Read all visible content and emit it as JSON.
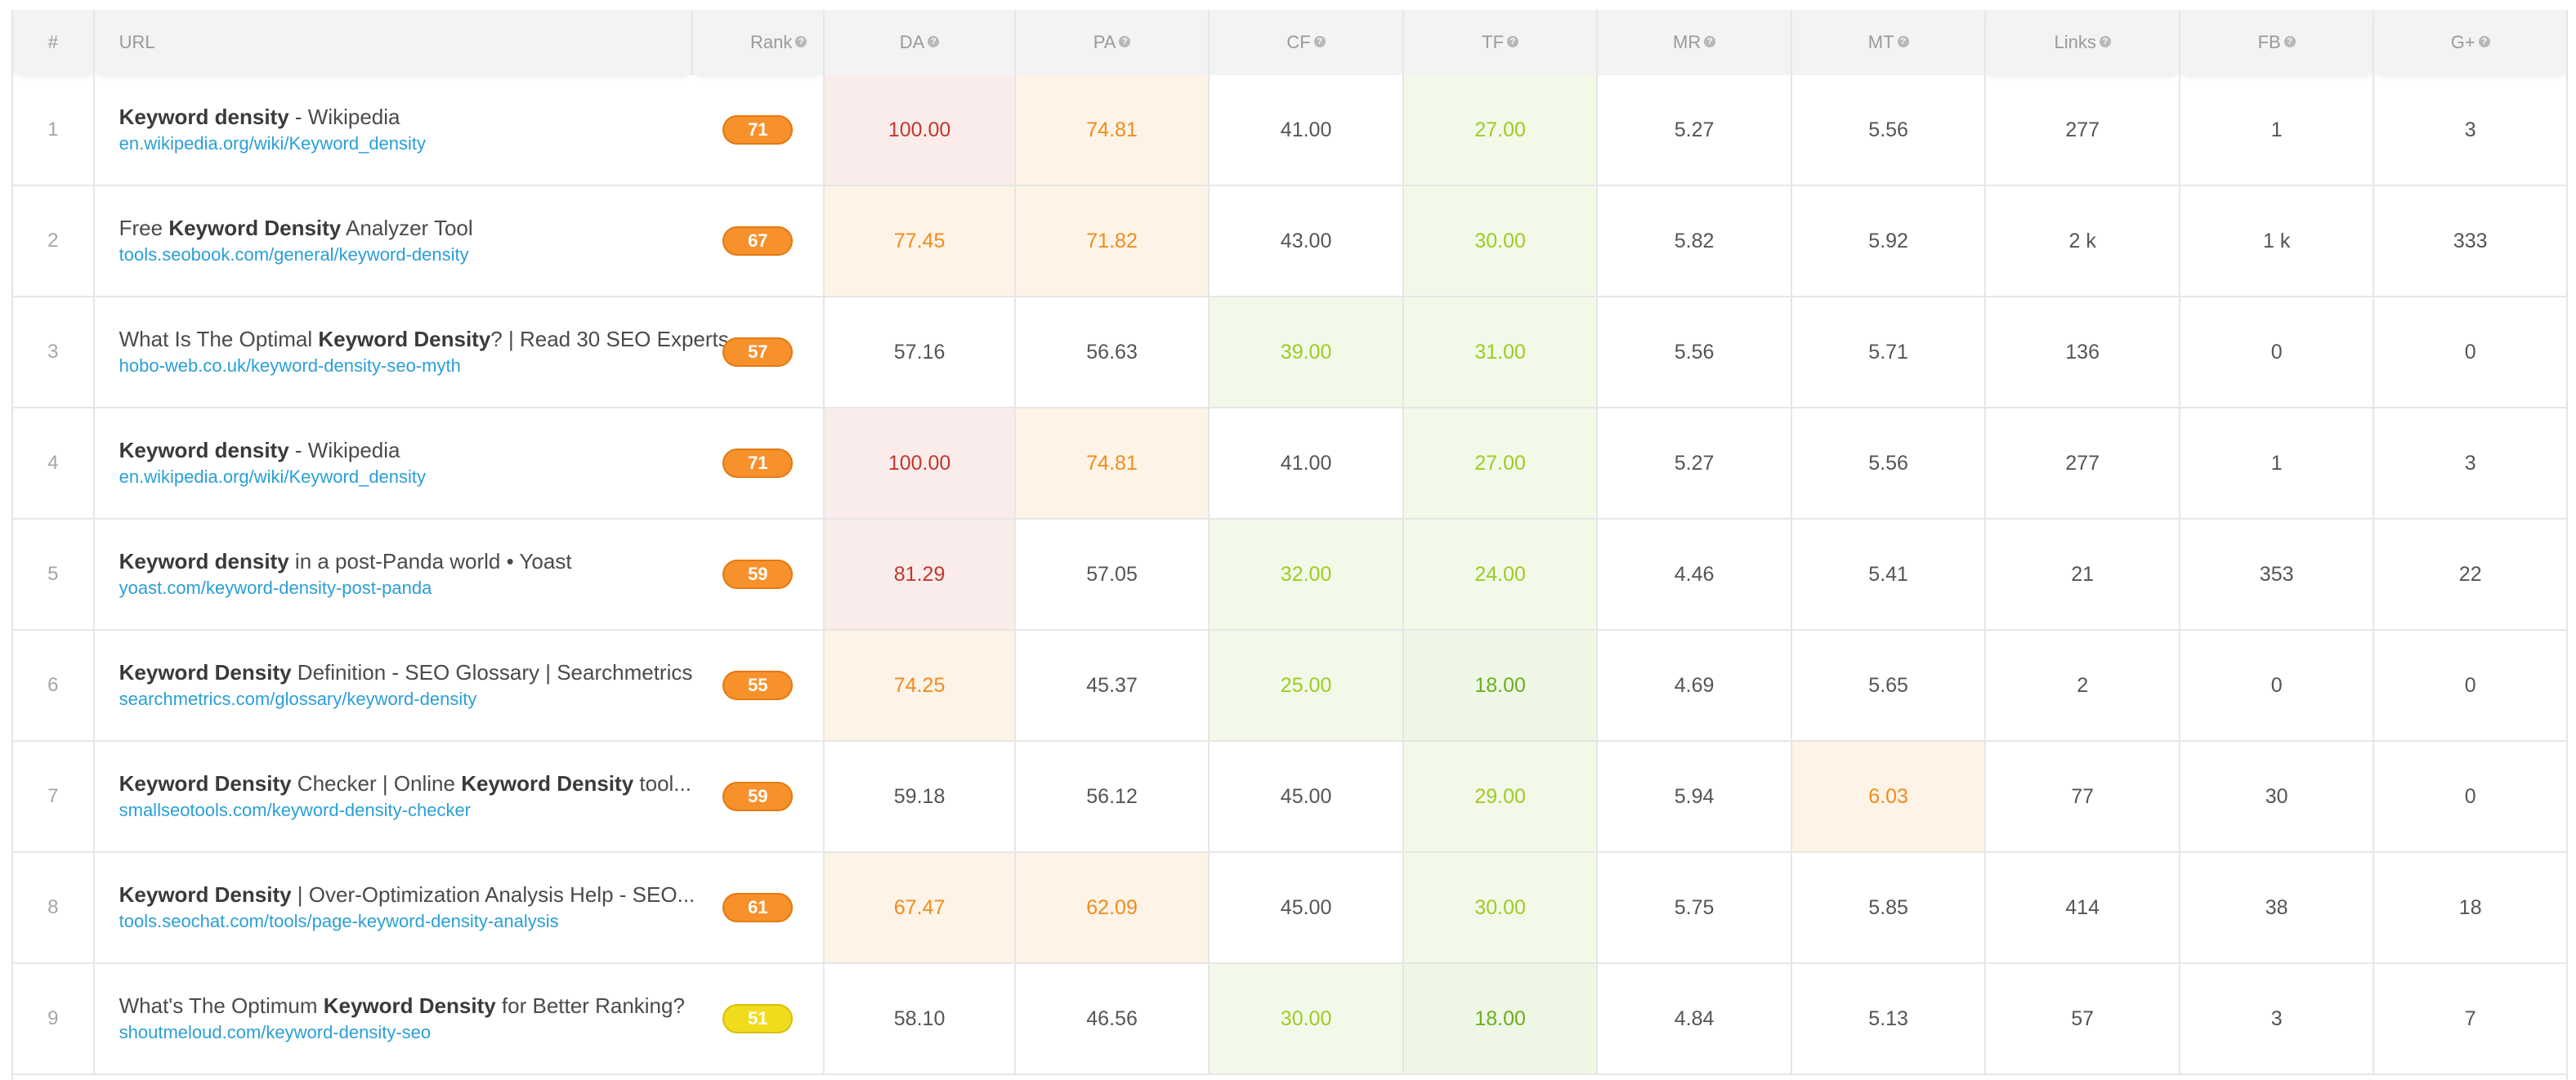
{
  "columns": {
    "num": "#",
    "url": "URL",
    "rank": "Rank",
    "da": "DA",
    "pa": "PA",
    "cf": "CF",
    "tf": "TF",
    "mr": "MR",
    "mt": "MT",
    "links": "Links",
    "fb": "FB",
    "gplus": "G+"
  },
  "colors": {
    "red": "#c0392b",
    "orange": "#ef8c1e",
    "light_green": "#9ccc22",
    "green": "#6dad1e",
    "rank_orange": "#f7912b",
    "rank_yellow": "#f0dc1c",
    "link_blue": "#2a9fd6"
  },
  "rows": [
    {
      "num": "1",
      "title": [
        [
          "b",
          "Keyword density"
        ],
        [
          "t",
          " - Wikipedia"
        ]
      ],
      "url": "en.wikipedia.org/wiki/Keyword_density",
      "rank": "71",
      "rank_color": "orange",
      "da": {
        "v": "100.00",
        "c": "red"
      },
      "pa": {
        "v": "74.81",
        "c": "orange"
      },
      "cf": {
        "v": "41.00",
        "c": "plain"
      },
      "tf": {
        "v": "27.00",
        "c": "lgreen"
      },
      "mr": {
        "v": "5.27",
        "c": "plain"
      },
      "mt": {
        "v": "5.56",
        "c": "plain"
      },
      "links": "277",
      "fb": "1",
      "gplus": "3"
    },
    {
      "num": "2",
      "title": [
        [
          "t",
          "Free "
        ],
        [
          "b",
          "Keyword Density"
        ],
        [
          "t",
          " Analyzer Tool"
        ]
      ],
      "url": "tools.seobook.com/general/keyword-density",
      "rank": "67",
      "rank_color": "orange",
      "da": {
        "v": "77.45",
        "c": "orange"
      },
      "pa": {
        "v": "71.82",
        "c": "orange"
      },
      "cf": {
        "v": "43.00",
        "c": "plain"
      },
      "tf": {
        "v": "30.00",
        "c": "lgreen"
      },
      "mr": {
        "v": "5.82",
        "c": "plain"
      },
      "mt": {
        "v": "5.92",
        "c": "plain"
      },
      "links": "2 k",
      "fb": "1 k",
      "gplus": "333"
    },
    {
      "num": "3",
      "title": [
        [
          "t",
          "What Is The Optimal "
        ],
        [
          "b",
          "Keyword Density"
        ],
        [
          "t",
          "? | Read 30 SEO Experts"
        ]
      ],
      "url": "hobo-web.co.uk/keyword-density-seo-myth",
      "rank": "57",
      "rank_color": "orange",
      "da": {
        "v": "57.16",
        "c": "plain"
      },
      "pa": {
        "v": "56.63",
        "c": "plain"
      },
      "cf": {
        "v": "39.00",
        "c": "lgreen"
      },
      "tf": {
        "v": "31.00",
        "c": "lgreen"
      },
      "mr": {
        "v": "5.56",
        "c": "plain"
      },
      "mt": {
        "v": "5.71",
        "c": "plain"
      },
      "links": "136",
      "fb": "0",
      "gplus": "0"
    },
    {
      "num": "4",
      "title": [
        [
          "b",
          "Keyword density"
        ],
        [
          "t",
          " - Wikipedia"
        ]
      ],
      "url": "en.wikipedia.org/wiki/Keyword_density",
      "rank": "71",
      "rank_color": "orange",
      "da": {
        "v": "100.00",
        "c": "red"
      },
      "pa": {
        "v": "74.81",
        "c": "orange"
      },
      "cf": {
        "v": "41.00",
        "c": "plain"
      },
      "tf": {
        "v": "27.00",
        "c": "lgreen"
      },
      "mr": {
        "v": "5.27",
        "c": "plain"
      },
      "mt": {
        "v": "5.56",
        "c": "plain"
      },
      "links": "277",
      "fb": "1",
      "gplus": "3"
    },
    {
      "num": "5",
      "title": [
        [
          "b",
          "Keyword density"
        ],
        [
          "t",
          " in a post-Panda world • Yoast"
        ]
      ],
      "url": "yoast.com/keyword-density-post-panda",
      "rank": "59",
      "rank_color": "orange",
      "da": {
        "v": "81.29",
        "c": "red"
      },
      "pa": {
        "v": "57.05",
        "c": "plain"
      },
      "cf": {
        "v": "32.00",
        "c": "lgreen"
      },
      "tf": {
        "v": "24.00",
        "c": "lgreen"
      },
      "mr": {
        "v": "4.46",
        "c": "plain"
      },
      "mt": {
        "v": "5.41",
        "c": "plain"
      },
      "links": "21",
      "fb": "353",
      "gplus": "22"
    },
    {
      "num": "6",
      "title": [
        [
          "b",
          "Keyword Density"
        ],
        [
          "t",
          " Definition - SEO Glossary | Searchmetrics"
        ]
      ],
      "url": "searchmetrics.com/glossary/keyword-density",
      "rank": "55",
      "rank_color": "orange",
      "da": {
        "v": "74.25",
        "c": "orange"
      },
      "pa": {
        "v": "45.37",
        "c": "plain"
      },
      "cf": {
        "v": "25.00",
        "c": "lgreen"
      },
      "tf": {
        "v": "18.00",
        "c": "green"
      },
      "mr": {
        "v": "4.69",
        "c": "plain"
      },
      "mt": {
        "v": "5.65",
        "c": "plain"
      },
      "links": "2",
      "fb": "0",
      "gplus": "0"
    },
    {
      "num": "7",
      "title": [
        [
          "b",
          "Keyword Density"
        ],
        [
          "t",
          " Checker | Online "
        ],
        [
          "b",
          "Keyword Density"
        ],
        [
          "t",
          " tool..."
        ]
      ],
      "url": "smallseotools.com/keyword-density-checker",
      "rank": "59",
      "rank_color": "orange",
      "da": {
        "v": "59.18",
        "c": "plain"
      },
      "pa": {
        "v": "56.12",
        "c": "plain"
      },
      "cf": {
        "v": "45.00",
        "c": "plain"
      },
      "tf": {
        "v": "29.00",
        "c": "lgreen"
      },
      "mr": {
        "v": "5.94",
        "c": "plain"
      },
      "mt": {
        "v": "6.03",
        "c": "orange"
      },
      "links": "77",
      "fb": "30",
      "gplus": "0"
    },
    {
      "num": "8",
      "title": [
        [
          "b",
          "Keyword Density"
        ],
        [
          "t",
          " | Over-Optimization Analysis Help - SEO..."
        ]
      ],
      "url": "tools.seochat.com/tools/page-keyword-density-analysis",
      "rank": "61",
      "rank_color": "orange",
      "da": {
        "v": "67.47",
        "c": "orange"
      },
      "pa": {
        "v": "62.09",
        "c": "orange"
      },
      "cf": {
        "v": "45.00",
        "c": "plain"
      },
      "tf": {
        "v": "30.00",
        "c": "lgreen"
      },
      "mr": {
        "v": "5.75",
        "c": "plain"
      },
      "mt": {
        "v": "5.85",
        "c": "plain"
      },
      "links": "414",
      "fb": "38",
      "gplus": "18"
    },
    {
      "num": "9",
      "title": [
        [
          "t",
          "What's The Optimum "
        ],
        [
          "b",
          "Keyword Density"
        ],
        [
          "t",
          " for Better Ranking?"
        ]
      ],
      "url": "shoutmeloud.com/keyword-density-seo",
      "rank": "51",
      "rank_color": "yellow",
      "da": {
        "v": "58.10",
        "c": "plain"
      },
      "pa": {
        "v": "46.56",
        "c": "plain"
      },
      "cf": {
        "v": "30.00",
        "c": "lgreen"
      },
      "tf": {
        "v": "18.00",
        "c": "green"
      },
      "mr": {
        "v": "4.84",
        "c": "plain"
      },
      "mt": {
        "v": "5.13",
        "c": "plain"
      },
      "links": "57",
      "fb": "3",
      "gplus": "7"
    }
  ]
}
